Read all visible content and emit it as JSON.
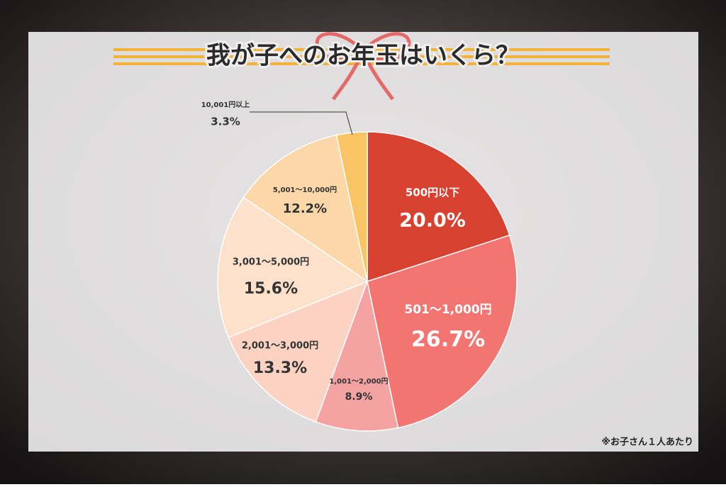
{
  "chart_data": {
    "type": "pie",
    "title": "我が子へのお年玉はいくら？",
    "note": "※お子さん１人あたり",
    "categories": [
      "500円以下",
      "501〜1,000円",
      "1,001〜2,000円",
      "2,001〜3,000円",
      "3,001〜5,000円",
      "5,001〜10,000円",
      "10,001円以上"
    ],
    "values": [
      20.0,
      26.7,
      8.9,
      13.3,
      15.6,
      12.2,
      3.3
    ],
    "value_labels": [
      "20.0%",
      "26.7%",
      "8.9%",
      "13.3%",
      "15.6%",
      "12.2%",
      "3.3%"
    ],
    "colors": [
      "#d8402f",
      "#f27572",
      "#f5a3a2",
      "#fcd3c2",
      "#fde1cb",
      "#fcd7a8",
      "#f9c463"
    ]
  }
}
